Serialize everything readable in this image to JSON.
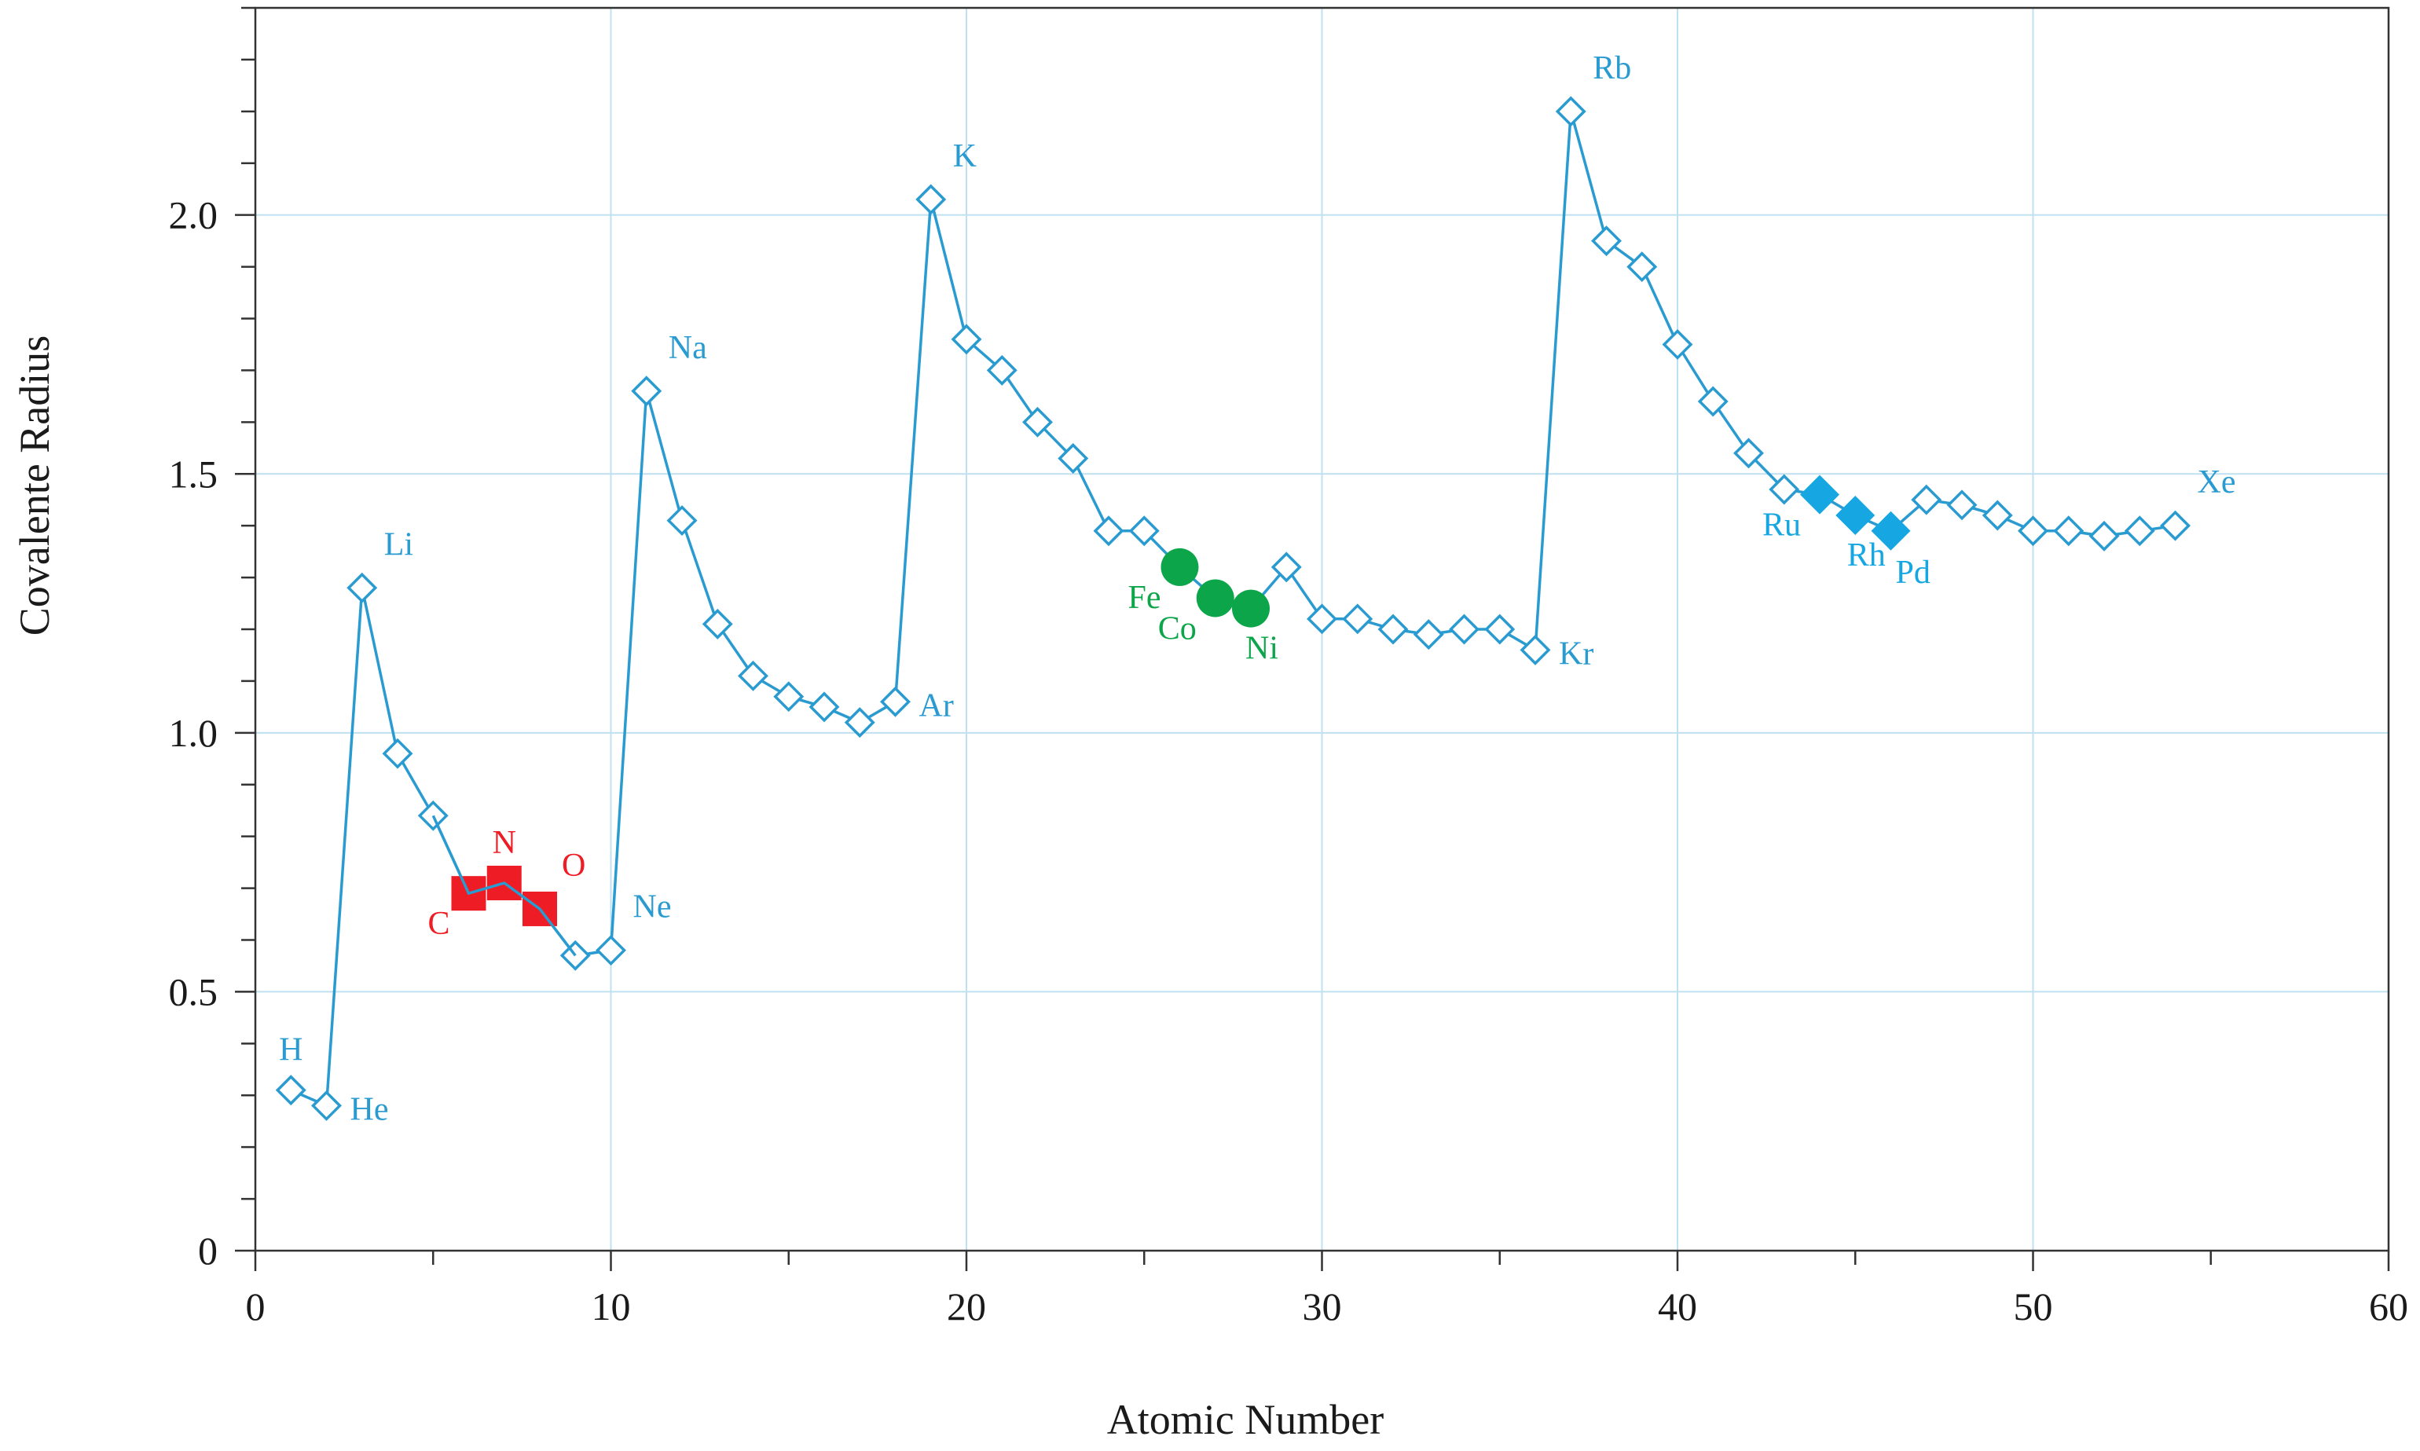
{
  "chart_data": {
    "type": "line",
    "title": "",
    "xlabel": "Atomic Number",
    "ylabel": "Covalente Radius",
    "xlim": [
      0,
      60
    ],
    "ylim": [
      0,
      2.4
    ],
    "xticks": [
      0,
      10,
      20,
      30,
      40,
      50,
      60
    ],
    "xtick_labels": [
      "0",
      "10",
      "20",
      "30",
      "40",
      "50",
      "60"
    ],
    "yticks": [
      0,
      0.5,
      1.0,
      1.5,
      2.0
    ],
    "ytick_labels": [
      "0",
      "0.5",
      "1.0",
      "1.5",
      "2.0"
    ],
    "grid": true,
    "colors": {
      "series": "#2a9bd0",
      "grid": "#bfe0f0",
      "cno": "#ee1c24",
      "fe_co_ni": "#0ca54a",
      "ru_rh_pd": "#16a7e3",
      "axis": "#333333"
    },
    "series": [
      {
        "name": "Covalent radius",
        "marker": "open-diamond",
        "x": [
          1,
          2,
          3,
          4,
          5,
          6,
          7,
          8,
          9,
          10,
          11,
          12,
          13,
          14,
          15,
          16,
          17,
          18,
          19,
          20,
          21,
          22,
          23,
          24,
          25,
          26,
          27,
          28,
          29,
          30,
          31,
          32,
          33,
          34,
          35,
          36,
          37,
          38,
          39,
          40,
          41,
          42,
          43,
          44,
          45,
          46,
          47,
          48,
          49,
          50,
          51,
          52,
          53,
          54
        ],
        "y": [
          0.31,
          0.28,
          1.28,
          0.96,
          0.84,
          0.69,
          0.71,
          0.66,
          0.57,
          0.58,
          1.66,
          1.41,
          1.21,
          1.11,
          1.07,
          1.05,
          1.02,
          1.06,
          2.03,
          1.76,
          1.7,
          1.6,
          1.53,
          1.39,
          1.39,
          1.32,
          1.26,
          1.24,
          1.32,
          1.22,
          1.22,
          1.2,
          1.19,
          1.2,
          1.2,
          1.16,
          2.2,
          1.95,
          1.9,
          1.75,
          1.64,
          1.54,
          1.47,
          1.46,
          1.42,
          1.39,
          1.45,
          1.44,
          1.42,
          1.39,
          1.39,
          1.38,
          1.39,
          1.4
        ]
      }
    ],
    "highlights": [
      {
        "group": "C, N, O",
        "marker": "filled-square",
        "color_key": "cno",
        "x": [
          6,
          7,
          8
        ],
        "y": [
          0.69,
          0.71,
          0.66
        ]
      },
      {
        "group": "Fe, Co, Ni",
        "marker": "filled-circle",
        "color_key": "fe_co_ni",
        "x": [
          26,
          27,
          28
        ],
        "y": [
          1.32,
          1.26,
          1.24
        ]
      },
      {
        "group": "Ru, Rh, Pd",
        "marker": "filled-diamond",
        "color_key": "ru_rh_pd",
        "x": [
          44,
          45,
          46
        ],
        "y": [
          1.46,
          1.42,
          1.39
        ]
      }
    ],
    "annotations": [
      {
        "text": "H",
        "x": 1,
        "y": 0.31,
        "pos": "above",
        "color_key": "series"
      },
      {
        "text": "He",
        "x": 2,
        "y": 0.28,
        "pos": "right",
        "color_key": "series"
      },
      {
        "text": "Li",
        "x": 3,
        "y": 1.28,
        "pos": "above-right",
        "color_key": "series"
      },
      {
        "text": "C",
        "x": 6,
        "y": 0.69,
        "pos": "below-left",
        "color_key": "cno"
      },
      {
        "text": "N",
        "x": 7,
        "y": 0.71,
        "pos": "above",
        "color_key": "cno"
      },
      {
        "text": "O",
        "x": 8,
        "y": 0.66,
        "pos": "above-right",
        "color_key": "cno"
      },
      {
        "text": "Ne",
        "x": 10,
        "y": 0.58,
        "pos": "above-right",
        "color_key": "series"
      },
      {
        "text": "Na",
        "x": 11,
        "y": 1.66,
        "pos": "above-right",
        "color_key": "series"
      },
      {
        "text": "Ar",
        "x": 18,
        "y": 1.06,
        "pos": "right",
        "color_key": "series"
      },
      {
        "text": "K",
        "x": 19,
        "y": 2.03,
        "pos": "above-right",
        "color_key": "series"
      },
      {
        "text": "Fe",
        "x": 26,
        "y": 1.32,
        "pos": "below-left",
        "color_key": "fe_co_ni"
      },
      {
        "text": "Co",
        "x": 27,
        "y": 1.26,
        "pos": "below-left",
        "color_key": "fe_co_ni"
      },
      {
        "text": "Ni",
        "x": 28,
        "y": 1.24,
        "pos": "below",
        "color_key": "fe_co_ni"
      },
      {
        "text": "Kr",
        "x": 36,
        "y": 1.16,
        "pos": "right",
        "color_key": "series"
      },
      {
        "text": "Rb",
        "x": 37,
        "y": 2.2,
        "pos": "above-right",
        "color_key": "series"
      },
      {
        "text": "Ru",
        "x": 44,
        "y": 1.46,
        "pos": "below-left",
        "color_key": "ru_rh_pd"
      },
      {
        "text": "Rh",
        "x": 45,
        "y": 1.42,
        "pos": "below",
        "color_key": "ru_rh_pd"
      },
      {
        "text": "Pd",
        "x": 46,
        "y": 1.39,
        "pos": "below-right",
        "color_key": "ru_rh_pd"
      },
      {
        "text": "Xe",
        "x": 54,
        "y": 1.4,
        "pos": "above-right",
        "color_key": "series"
      }
    ]
  }
}
